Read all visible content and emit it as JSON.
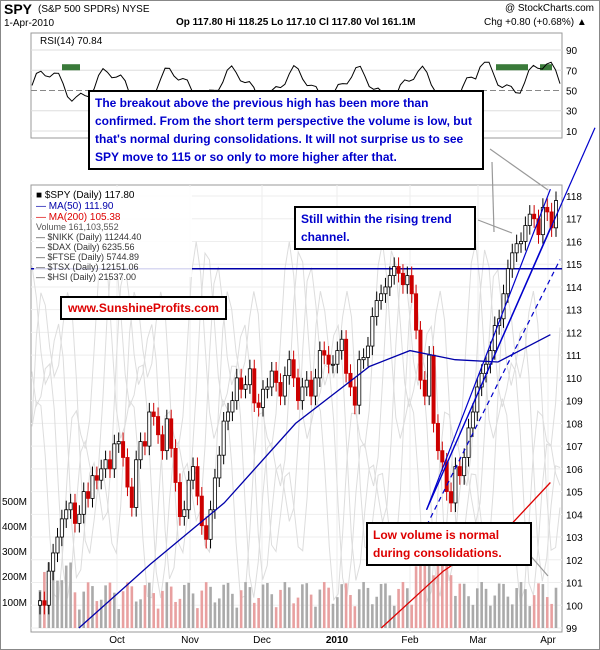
{
  "header": {
    "symbol": "SPY",
    "name": "(S&P 500 SPDRs) NYSE",
    "credit": "@ StockCharts.com",
    "date": "1-Apr-2010",
    "quote": "Op 117.80  Hi 118.25  Lo 117.10  Cl 117.80  Vol 161.1M",
    "change": "Chg +0.80 (+0.68%) ▲"
  },
  "colors": {
    "price_up": "#000000",
    "price_down": "#cc0000",
    "ma50": "#0000aa",
    "ma200": "#dd0000",
    "trend": "#0000cc",
    "note_blue": "#0000cc",
    "note_red": "#dd0000",
    "website": "#dd0000",
    "rsi_fill": "#3a7a3a"
  },
  "rsi": {
    "label": "RSI(14) 70.84",
    "ylabels": [
      "90",
      "70",
      "50",
      "30",
      "10"
    ],
    "levels": [
      90,
      70,
      50,
      30,
      10
    ]
  },
  "legend": {
    "spy": "■ $SPY (Daily) 117.80",
    "ma50": "— MA(50) 111.90",
    "ma200": "— MA(200) 105.38",
    "volume": "Volume 161,103,552",
    "nikk": "— $NIKK (Daily) 11244.40",
    "dax": "— $DAX (Daily) 6235.56",
    "ftse": "— $FTSE (Daily) 5744.89",
    "tsx": "— $TSX (Daily) 12151.06",
    "hsi": "— $HSI (Daily) 21537.00"
  },
  "annotations": {
    "breakout": "The breakout above the previous high has been more than confirmed. From the short term perspective the volume is low, but that's normal during consolidations. It will not surprise us to see SPY move to 115 or so only to more higher after that.",
    "channel": "Still within the rising trend channel.",
    "volume": "Low volume is normal during consolidations.",
    "website": "www.SunshineProfits.com"
  },
  "chart_data": {
    "type": "line",
    "price_axis": {
      "labels": [
        "118",
        "117",
        "116",
        "115",
        "114",
        "113",
        "112",
        "111",
        "110",
        "109",
        "108",
        "107",
        "106",
        "105",
        "104",
        "103",
        "102",
        "101",
        "100",
        "99"
      ],
      "ylim": [
        99,
        118.5
      ]
    },
    "volume_axis": {
      "labels": [
        "500M",
        "400M",
        "300M",
        "200M",
        "100M"
      ]
    },
    "x_labels": [
      "Oct",
      "Nov",
      "Dec",
      "2010",
      "Feb",
      "Mar",
      "Apr"
    ],
    "horizontal_level": 114.8,
    "ma50": [
      {
        "x": "Sep 15",
        "y": 99.0
      },
      {
        "x": "Oct 15",
        "y": 101.8
      },
      {
        "x": "Nov 15",
        "y": 104.5
      },
      {
        "x": "Dec 15",
        "y": 108.0
      },
      {
        "x": "Jan 15",
        "y": 110.5
      },
      {
        "x": "Feb 1",
        "y": 111.2
      },
      {
        "x": "Feb 20",
        "y": 110.8
      },
      {
        "x": "Mar 10",
        "y": 110.7
      },
      {
        "x": "Apr 1",
        "y": 111.9
      }
    ],
    "ma200": [
      {
        "x": "Jan 20",
        "y": 99.0
      },
      {
        "x": "Feb 15",
        "y": 101.5
      },
      {
        "x": "Mar 15",
        "y": 103.5
      },
      {
        "x": "Apr 1",
        "y": 105.4
      }
    ],
    "series": [
      {
        "name": "$SPY (Daily)",
        "close": [
          100.2,
          100.0,
          101.5,
          102.3,
          103.0,
          103.8,
          104.2,
          104.5,
          103.6,
          104.0,
          105.0,
          104.7,
          105.7,
          105.5,
          106.0,
          106.4,
          106.0,
          107.1,
          107.2,
          106.5,
          105.2,
          104.3,
          106.4,
          107.2,
          107.0,
          108.5,
          108.3,
          107.5,
          106.8,
          108.2,
          106.9,
          105.4,
          103.9,
          104.2,
          105.5,
          106.1,
          104.8,
          103.5,
          102.9,
          104.2,
          105.6,
          106.6,
          108.1,
          108.5,
          109.0,
          110.0,
          109.5,
          109.7,
          110.4,
          108.9,
          108.7,
          109.5,
          109.6,
          110.3,
          109.8,
          109.2,
          110.1,
          110.8,
          110.0,
          109.0,
          109.6,
          109.9,
          109.2,
          110.0,
          111.2,
          111.0,
          110.6,
          110.6,
          111.2,
          111.7,
          110.2,
          109.6,
          108.8,
          110.8,
          110.9,
          111.4,
          112.7,
          113.4,
          113.7,
          114.0,
          114.5,
          114.9,
          114.6,
          114.1,
          114.5,
          113.7,
          112.1,
          109.9,
          109.2,
          111.0,
          108.0,
          106.8,
          106.3,
          105.0,
          104.5,
          106.1,
          105.7,
          106.5,
          107.8,
          108.5,
          109.6,
          110.2,
          110.6,
          111.2,
          112.3,
          112.6,
          113.7,
          114.8,
          115.5,
          115.9,
          116.0,
          116.7,
          117.2,
          117.0,
          116.3,
          117.5,
          117.3,
          116.6,
          117.8
        ]
      }
    ],
    "trend_channel": [
      {
        "from": [
          "Feb 8",
          104.2
        ],
        "to": [
          "Apr 1",
          118.3
        ]
      },
      {
        "from": [
          "Feb 8",
          104.2
        ],
        "to": [
          "Apr 1",
          116.6
        ]
      }
    ]
  }
}
